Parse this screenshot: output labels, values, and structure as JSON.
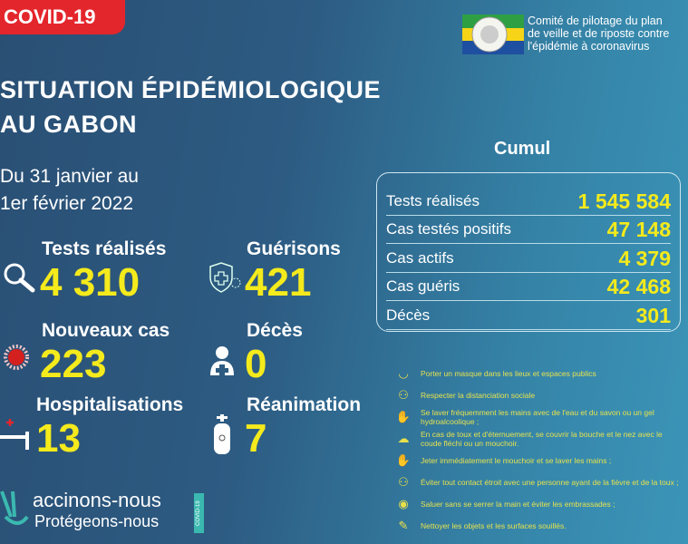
{
  "badge": "COVID-19",
  "header": {
    "committee_lines": [
      "Comité de pilotage du plan",
      "de veille et de riposte contre",
      "l'épidémie à coronavirus"
    ]
  },
  "title_lines": [
    "SITUATION ÉPIDÉMIOLOGIQUE",
    "AU GABON"
  ],
  "date_lines": [
    "Du 31 janvier au",
    "1er février 2022"
  ],
  "daily": [
    {
      "label": "Tests réalisés",
      "value": "4 310",
      "icon": "magnifier-icon"
    },
    {
      "label": "Guérisons",
      "value": "421",
      "icon": "shield-cross-icon"
    },
    {
      "label": "Nouveaux cas",
      "value": "223",
      "icon": "virus-icon"
    },
    {
      "label": "Décès",
      "value": "0",
      "icon": "person-cross-icon"
    },
    {
      "label": "Hospitalisations",
      "value": "13",
      "icon": "hospital-bed-icon"
    },
    {
      "label": "Réanimation",
      "value": "7",
      "icon": "oxygen-tank-icon"
    }
  ],
  "cumul": {
    "title": "Cumul",
    "rows": [
      {
        "label": "Tests réalisés",
        "value": "1 545 584"
      },
      {
        "label": "Cas testés positifs",
        "value": "47 148"
      },
      {
        "label": "Cas actifs",
        "value": "4 379"
      },
      {
        "label": "Cas guéris",
        "value": "42 468"
      },
      {
        "label": "Décès",
        "value": "301"
      }
    ]
  },
  "tips": [
    {
      "text": "Porter un masque dans les lieux et espaces publics",
      "icon": "mask-icon"
    },
    {
      "text": "Respecter la distanciation sociale",
      "icon": "distance-icon"
    },
    {
      "text": "Se laver fréquemment les mains avec de l'eau et du savon ou un gel hydroalcoolique ;",
      "icon": "handwash-icon"
    },
    {
      "text": "En cas de toux et d'éternuement, se couvrir la bouche et le nez avec le coude fléchi ou un mouchoir.",
      "icon": "cough-icon"
    },
    {
      "text": "Jeter immédiatement le mouchoir et se laver les mains ;",
      "icon": "handwash-icon"
    },
    {
      "text": "Éviter tout contact étroit avec une personne ayant de la fièvre et de la toux ;",
      "icon": "distance-icon"
    },
    {
      "text": "Saluer sans se serrer la main et éviter les embrassades ;",
      "icon": "greeting-icon"
    },
    {
      "text": "Nettoyer les objets et les surfaces souillés.",
      "icon": "cleaning-icon"
    }
  ],
  "vaccine": {
    "line1": "accinons-nous",
    "line2": "Protégeons-nous",
    "tag": "COVID-19"
  },
  "colors": {
    "accent": "#f4ea1c",
    "badge": "#e3262c",
    "tips": "#e6e24f"
  }
}
